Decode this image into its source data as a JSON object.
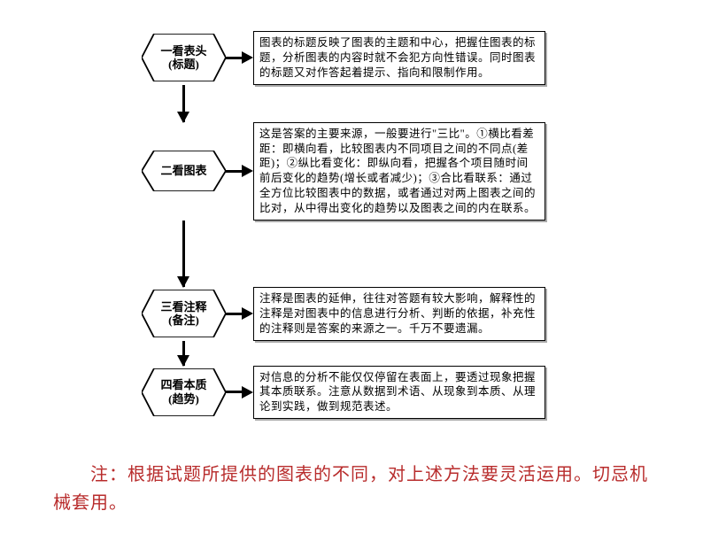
{
  "flowchart": {
    "type": "flowchart",
    "direction": "vertical",
    "node_shape": "hexagon",
    "colors": {
      "node_stroke": "#000000",
      "node_fill": "#ffffff",
      "arrow": "#000000",
      "box_border": "#000000",
      "box_shadow": "#aaaaaa",
      "text": "#000000",
      "background": "#ffffff"
    },
    "node_font_size": 13,
    "desc_font_size": 12.5,
    "hex_width": 95,
    "desc_width": 330,
    "steps": [
      {
        "title": "一看表头",
        "subtitle": "(标题)",
        "desc": "图表的标题反映了图表的主题和中心，把握住图表的标题，分析图表的内容时就不会犯方向性错误。同时图表的标题又对作答起着提示、指向和限制作用。",
        "hex_height": 54,
        "v_arrow_height": 42
      },
      {
        "title": "二看图表",
        "subtitle": "",
        "desc": "这是答案的主要来源，一般要进行\"三比\"。①横比看差距：即横向看，比较图表内不同项目之间的不同点(差距)；②纵比看变化：即纵向看，把握各个项目随时间前后变化的趋势(增长或者减少)；③合比看联系：通过全方位比较图表中的数据，或者通过对两上图表之间的比对，从中得出变化的趋势以及图表之间的内在联系。",
        "hex_height": 46,
        "v_arrow_height": 75
      },
      {
        "title": "三看注释",
        "subtitle": "(备注)",
        "desc": "注释是图表的延伸，往往对答题有较大影响，解释性的注释是对图表中的信息进行分析、判断的依据，补充性的注释则是答案的来源之一。千万不要遗漏。",
        "hex_height": 54,
        "v_arrow_height": 28
      },
      {
        "title": "四看本质",
        "subtitle": "(趋势)",
        "desc": "对信息的分析不能仅仅停留在表面上，要透过现象把握其本质联系。注意从数据到术语、从现象到本质、从理论到实践，做到规范表述。",
        "hex_height": 54,
        "v_arrow_height": 0
      }
    ]
  },
  "footnote": {
    "text": "　　注：根据试题所提供的图表的不同，对上述方法要灵活运用。切忌机械套用。",
    "color": "#b82c2c",
    "font_size": 20
  }
}
